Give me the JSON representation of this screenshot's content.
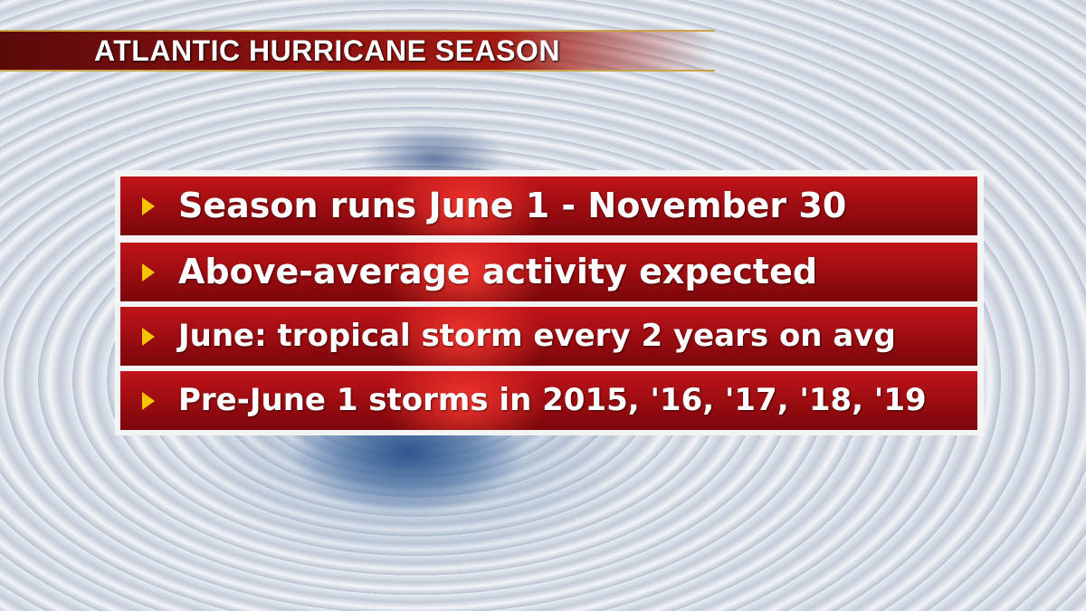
{
  "header": {
    "title": "ATLANTIC HURRICANE SEASON"
  },
  "bullets": [
    "Season runs June 1 - November 30",
    "Above-average activity expected",
    "June: tropical storm every 2 years on avg",
    "Pre-June 1 storms in 2015, '16, '17, '18, '19"
  ]
}
